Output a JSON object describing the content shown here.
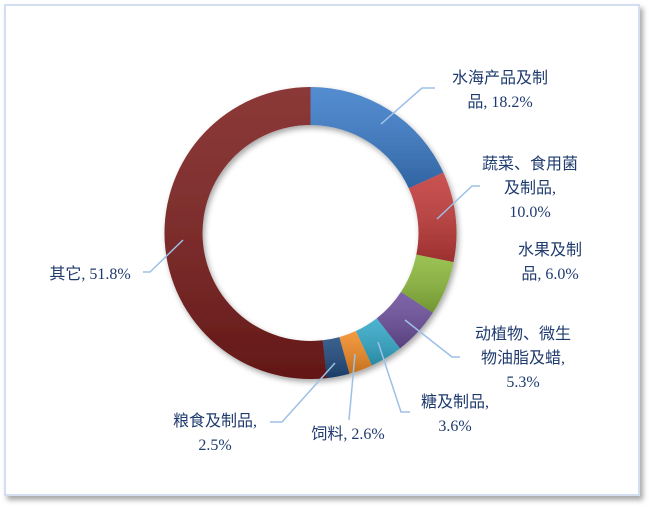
{
  "chart_data": {
    "type": "pie",
    "variant": "donut",
    "start_angle": "12 o'clock",
    "direction": "clockwise",
    "categories": [
      "水海产品及制品",
      "蔬菜、食用菌及制品",
      "水果及制品",
      "动植物、微生物油脂及蜡",
      "糖及制品",
      "饲料",
      "粮食及制品",
      "其它"
    ],
    "values": [
      18.2,
      10.0,
      6.0,
      5.3,
      3.6,
      2.6,
      2.5,
      51.8
    ],
    "unit": "%",
    "colors": [
      "#3b7cc9",
      "#c23b3a",
      "#8dba3c",
      "#6c4f9c",
      "#33a9c9",
      "#f28b25",
      "#1f4a7e",
      "#7b1d1c"
    ],
    "leader_line_color": "#9dc0e6",
    "label_lines": [
      [
        "水海产品及制",
        "品, 18.2%"
      ],
      [
        "蔬菜、食用菌",
        "及制品,",
        "10.0%"
      ],
      [
        "水果及制",
        "品, 6.0%"
      ],
      [
        "动植物、微生",
        "物油脂及蜡,",
        "5.3%"
      ],
      [
        "糖及制品,",
        "3.6%"
      ],
      [
        "饲料, 2.6%"
      ],
      [
        "粮食及制品,",
        "2.5%"
      ],
      [
        "其它, 51.8%"
      ]
    ],
    "legend": "none",
    "title": ""
  }
}
